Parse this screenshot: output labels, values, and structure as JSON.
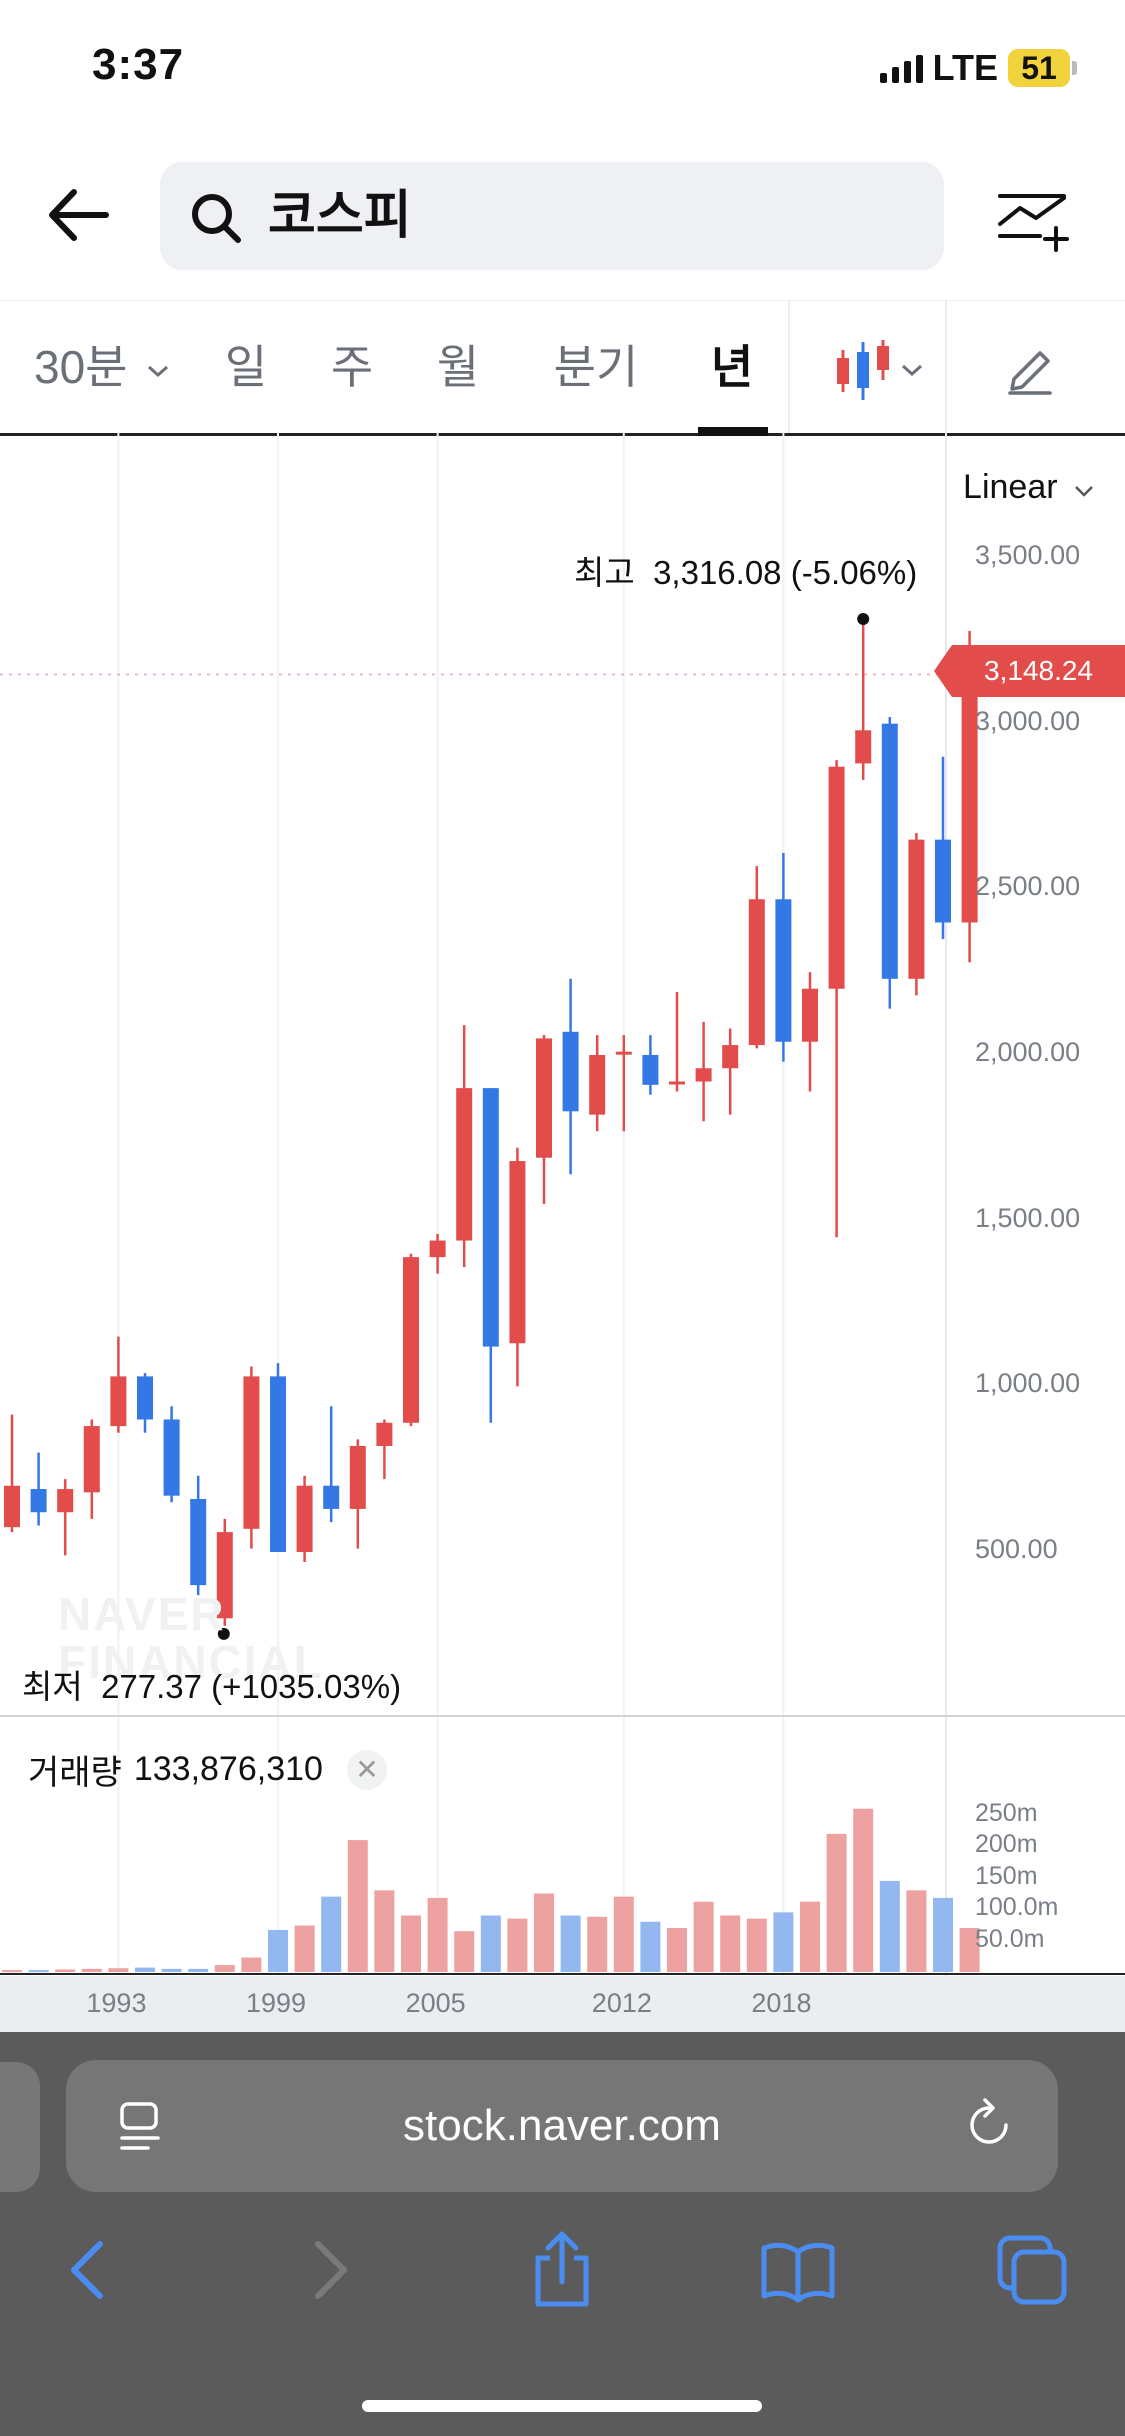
{
  "status_bar": {
    "time": "3:37",
    "network": "LTE",
    "battery": "51"
  },
  "header": {
    "search_value": "코스피"
  },
  "tabs": [
    {
      "label": "30분",
      "has_dropdown": true,
      "active": false
    },
    {
      "label": "일",
      "active": false
    },
    {
      "label": "주",
      "active": false
    },
    {
      "label": "월",
      "active": false
    },
    {
      "label": "분기",
      "active": false
    },
    {
      "label": "년",
      "active": true
    }
  ],
  "chart": {
    "scale": "Linear",
    "current_price": "3,148.24",
    "high_label": "최고",
    "high_value": "3,316.08 (-5.06%)",
    "low_label": "최저",
    "low_value": "277.37 (+1035.03%)",
    "watermark": [
      "NAVER",
      "FINANCIAL"
    ],
    "price_axis": [
      "3,500.00",
      "3,000.00",
      "2,500.00",
      "2,000.00",
      "1,500.00",
      "1,000.00",
      "500.00"
    ],
    "volume_label": "거래량",
    "volume_value": "133,876,310",
    "volume_axis": [
      "250m",
      "200m",
      "150m",
      "100.0m",
      "50.0m"
    ],
    "x_axis": [
      "1993",
      "1999",
      "2005",
      "2012",
      "2018"
    ],
    "colors": {
      "up": "#e24c4a",
      "down": "#3478e6",
      "up_volume": "#eda1a0",
      "down_volume": "#93b8ef"
    }
  },
  "chart_data": {
    "type": "candlestick",
    "title": "",
    "xlabel": "",
    "ylabel": "",
    "ylim": [
      0,
      3500
    ],
    "volume_ylim": [
      0,
      250
    ],
    "volume_unit": "m",
    "candles": [
      {
        "year": 1989,
        "open": 575,
        "high": 915,
        "low": 560,
        "close": 700,
        "volume": 3
      },
      {
        "year": 1990,
        "open": 690,
        "high": 800,
        "low": 580,
        "close": 620,
        "volume": 3
      },
      {
        "year": 1991,
        "open": 620,
        "high": 720,
        "low": 490,
        "close": 690,
        "volume": 4
      },
      {
        "year": 1992,
        "open": 680,
        "high": 900,
        "low": 600,
        "close": 880,
        "volume": 5
      },
      {
        "year": 1993,
        "open": 880,
        "high": 1150,
        "low": 860,
        "close": 1030,
        "volume": 6
      },
      {
        "year": 1994,
        "open": 1030,
        "high": 1040,
        "low": 860,
        "close": 900,
        "volume": 7
      },
      {
        "year": 1995,
        "open": 900,
        "high": 940,
        "low": 650,
        "close": 670,
        "volume": 5
      },
      {
        "year": 1996,
        "open": 660,
        "high": 730,
        "low": 370,
        "close": 400,
        "volume": 5
      },
      {
        "year": 1997,
        "open": 300,
        "high": 600,
        "low": 277,
        "close": 560,
        "volume": 11
      },
      {
        "year": 1998,
        "open": 570,
        "high": 1060,
        "low": 510,
        "close": 1030,
        "volume": 23
      },
      {
        "year": 1999,
        "open": 1030,
        "high": 1070,
        "low": 500,
        "close": 500,
        "volume": 67
      },
      {
        "year": 2000,
        "open": 500,
        "high": 730,
        "low": 470,
        "close": 700,
        "volume": 74
      },
      {
        "year": 2001,
        "open": 700,
        "high": 940,
        "low": 590,
        "close": 630,
        "volume": 120
      },
      {
        "year": 2002,
        "open": 630,
        "high": 840,
        "low": 510,
        "close": 820,
        "volume": 210
      },
      {
        "year": 2003,
        "open": 820,
        "high": 900,
        "low": 720,
        "close": 890,
        "volume": 130
      },
      {
        "year": 2004,
        "open": 890,
        "high": 1400,
        "low": 880,
        "close": 1390,
        "volume": 90
      },
      {
        "year": 2005,
        "open": 1390,
        "high": 1460,
        "low": 1340,
        "close": 1440,
        "volume": 118
      },
      {
        "year": 2006,
        "open": 1440,
        "high": 2090,
        "low": 1360,
        "close": 1900,
        "volume": 65
      },
      {
        "year": 2007,
        "open": 1900,
        "high": 1900,
        "low": 890,
        "close": 1120,
        "volume": 90
      },
      {
        "year": 2008,
        "open": 1130,
        "high": 1720,
        "low": 1000,
        "close": 1680,
        "volume": 85
      },
      {
        "year": 2009,
        "open": 1690,
        "high": 2060,
        "low": 1550,
        "close": 2050,
        "volume": 125
      },
      {
        "year": 2010,
        "open": 2070,
        "high": 2230,
        "low": 1640,
        "close": 1830,
        "volume": 90
      },
      {
        "year": 2011,
        "open": 1820,
        "high": 2060,
        "low": 1770,
        "close": 2000,
        "volume": 88
      },
      {
        "year": 2012,
        "open": 2010,
        "high": 2060,
        "low": 1770,
        "close": 2010,
        "volume": 120
      },
      {
        "year": 2013,
        "open": 2000,
        "high": 2060,
        "low": 1880,
        "close": 1910,
        "volume": 80
      },
      {
        "year": 2014,
        "open": 1920,
        "high": 2190,
        "low": 1890,
        "close": 1920,
        "volume": 70
      },
      {
        "year": 2015,
        "open": 1920,
        "high": 2100,
        "low": 1800,
        "close": 1960,
        "volume": 112
      },
      {
        "year": 2016,
        "open": 1960,
        "high": 2080,
        "low": 1820,
        "close": 2030,
        "volume": 90
      },
      {
        "year": 2017,
        "open": 2030,
        "high": 2570,
        "low": 2020,
        "close": 2470,
        "volume": 85
      },
      {
        "year": 2018,
        "open": 2470,
        "high": 2610,
        "low": 1980,
        "close": 2040,
        "volume": 95
      },
      {
        "year": 2019,
        "open": 2040,
        "high": 2250,
        "low": 1890,
        "close": 2200,
        "volume": 112
      },
      {
        "year": 2020,
        "open": 2200,
        "high": 2890,
        "low": 1450,
        "close": 2870,
        "volume": 220
      },
      {
        "year": 2021,
        "open": 2880,
        "high": 3316,
        "low": 2830,
        "close": 2980,
        "volume": 260
      },
      {
        "year": 2022,
        "open": 3000,
        "high": 3020,
        "low": 2140,
        "close": 2230,
        "volume": 145
      },
      {
        "year": 2023,
        "open": 2230,
        "high": 2670,
        "low": 2180,
        "close": 2650,
        "volume": 130
      },
      {
        "year": 2024,
        "open": 2650,
        "high": 2900,
        "low": 2350,
        "close": 2400,
        "volume": 118
      },
      {
        "year": 2025,
        "open": 2400,
        "high": 3280,
        "low": 2280,
        "close": 3148.24,
        "volume": 70
      }
    ]
  },
  "browser": {
    "url": "stock.naver.com"
  }
}
